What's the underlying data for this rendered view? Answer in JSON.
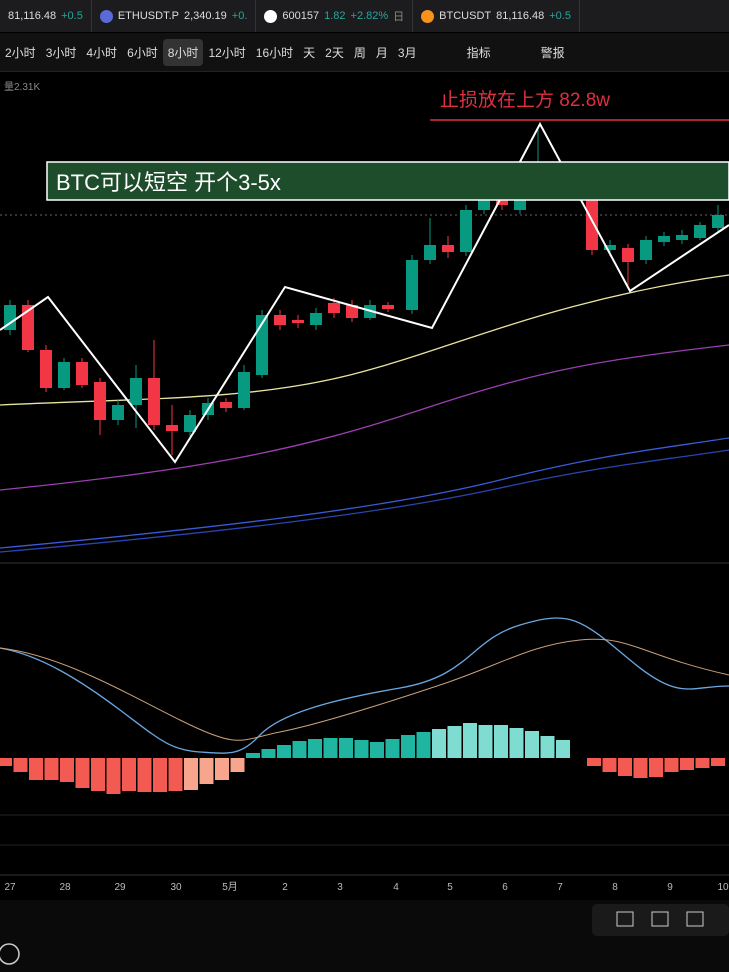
{
  "tabs": [
    {
      "symbol": null,
      "price": "81,116.48",
      "change": "+0.5"
    },
    {
      "symbol": "ETHUSDT.P",
      "price": "2,340.19",
      "change": "+0."
    },
    {
      "symbol": "600157",
      "price": "1.82",
      "change": "+2.82%",
      "extra": "日"
    },
    {
      "symbol": "BTCUSDT",
      "price": "81,116.48",
      "change": "+0.5"
    }
  ],
  "toolbar": {
    "intervals": [
      "2小时",
      "3小时",
      "4小时",
      "6小时",
      "8小时",
      "12小时",
      "16小时",
      "天",
      "2天",
      "周",
      "月",
      "3月"
    ],
    "indicators": "指标",
    "alerts": "警报"
  },
  "chart": {
    "volume_label": "量2.31K",
    "stop_note": "止损放在上方  82.8w",
    "trade_note": "BTC可以短空  开个3-5x"
  },
  "x_axis": [
    "27",
    "28",
    "29",
    "30",
    "5月",
    "2",
    "3",
    "4",
    "5",
    "6",
    "7",
    "8",
    "9",
    "10"
  ]
}
